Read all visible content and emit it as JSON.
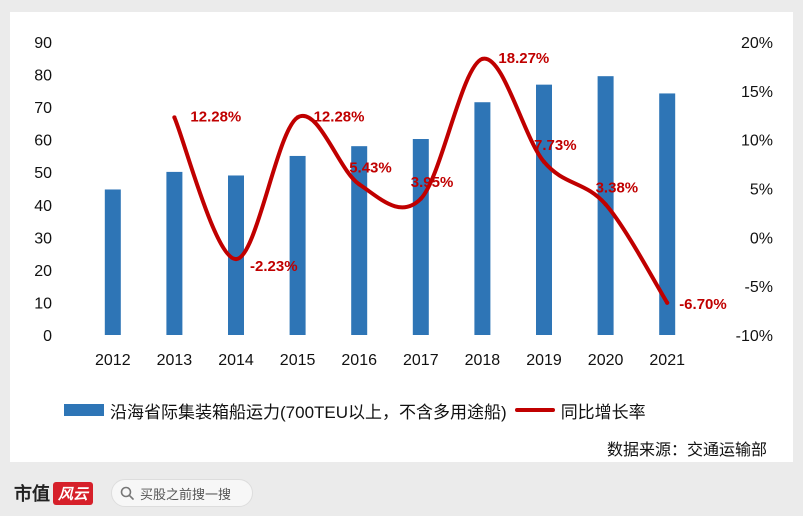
{
  "chart_data": {
    "type": "bar+line",
    "categories": [
      "2012",
      "2013",
      "2014",
      "2015",
      "2016",
      "2017",
      "2018",
      "2019",
      "2020",
      "2021"
    ],
    "series": [
      {
        "name": "沿海省际集装箱船运力(700TEU以上，不含多用途船)",
        "type": "bar",
        "axis": "left",
        "color": "#2e75b6",
        "values": [
          44.7,
          50.1,
          49.0,
          55.0,
          58.0,
          60.2,
          71.5,
          76.9,
          79.5,
          74.2
        ]
      },
      {
        "name": "同比增长率",
        "type": "line",
        "axis": "right",
        "color": "#c00000",
        "values": [
          null,
          12.28,
          -2.23,
          12.28,
          5.43,
          3.95,
          18.27,
          7.73,
          3.38,
          -6.7
        ],
        "labels": [
          "",
          "12.28%",
          "-2.23%",
          "12.28%",
          "5.43%",
          "3.95%",
          "18.27%",
          "7.73%",
          "3.38%",
          "-6.70%"
        ]
      }
    ],
    "y_left": {
      "min": 0,
      "max": 90,
      "step": 10,
      "ticks": [
        "0",
        "10",
        "20",
        "30",
        "40",
        "50",
        "60",
        "70",
        "80",
        "90"
      ]
    },
    "y_right": {
      "min": -10,
      "max": 20,
      "step": 5,
      "ticks": [
        "-10%",
        "-5%",
        "0%",
        "5%",
        "10%",
        "15%",
        "20%"
      ]
    },
    "legend": {
      "position": "bottom",
      "bar_label": "沿海省际集装箱船运力(700TEU以上，不含多用途船)",
      "line_label": "同比增长率"
    },
    "source": "数据来源：交通运输部",
    "grid": false
  },
  "footer": {
    "logo_text": "市值",
    "logo_mark": "风云",
    "search_placeholder": "买股之前搜一搜"
  }
}
